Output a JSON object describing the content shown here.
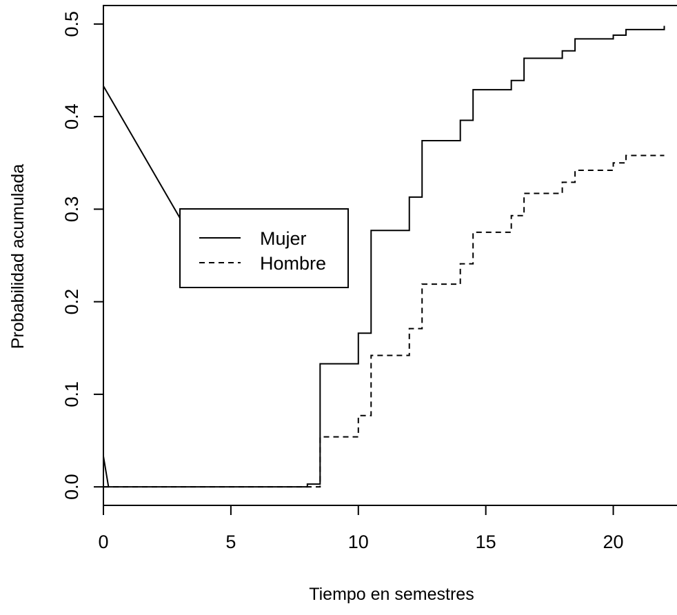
{
  "chart_data": {
    "type": "line",
    "title": "",
    "xlabel": "Tiempo en semestres",
    "ylabel": "Probabilidad acumulada",
    "xlim": [
      0,
      22.5
    ],
    "ylim": [
      -0.02,
      0.52
    ],
    "x_ticks": [
      0,
      5,
      10,
      15,
      20
    ],
    "x_tick_labels": [
      "0",
      "5",
      "10",
      "15",
      "20"
    ],
    "y_ticks": [
      0.0,
      0.1,
      0.2,
      0.3,
      0.4,
      0.5
    ],
    "y_tick_labels": [
      "0.0",
      "0.1",
      "0.2",
      "0.3",
      "0.4",
      "0.5"
    ],
    "grid": false,
    "legend_position": "center-left",
    "series": [
      {
        "name": "Mujer",
        "step": true,
        "line_style": "solid",
        "x": [
          0,
          8,
          8.5,
          10,
          10.5,
          12,
          12.5,
          14,
          14.5,
          16,
          16.5,
          18,
          18.5,
          20,
          20.5,
          22
        ],
        "y": [
          0,
          0.003,
          0.133,
          0.166,
          0.277,
          0.313,
          0.374,
          0.396,
          0.429,
          0.439,
          0.463,
          0.471,
          0.484,
          0.488,
          0.494,
          0.498
        ]
      },
      {
        "name": "Hombre",
        "step": true,
        "line_style": "dashed",
        "x": [
          0,
          8.5,
          10,
          10.5,
          12,
          12.5,
          14,
          14.5,
          16,
          16.5,
          18,
          18.5,
          20,
          20.5,
          22
        ],
        "y": [
          0,
          0.054,
          0.077,
          0.142,
          0.171,
          0.219,
          0.241,
          0.275,
          0.293,
          0.317,
          0.329,
          0.342,
          0.35,
          0.358,
          0.358
        ]
      }
    ],
    "extra_lines": [
      {
        "line_style": "solid",
        "x": [
          0,
          4
        ],
        "y": [
          0.433,
          0.243
        ]
      },
      {
        "line_style": "solid",
        "x": [
          0,
          0.2
        ],
        "y": [
          0.033,
          0.0
        ]
      }
    ]
  }
}
